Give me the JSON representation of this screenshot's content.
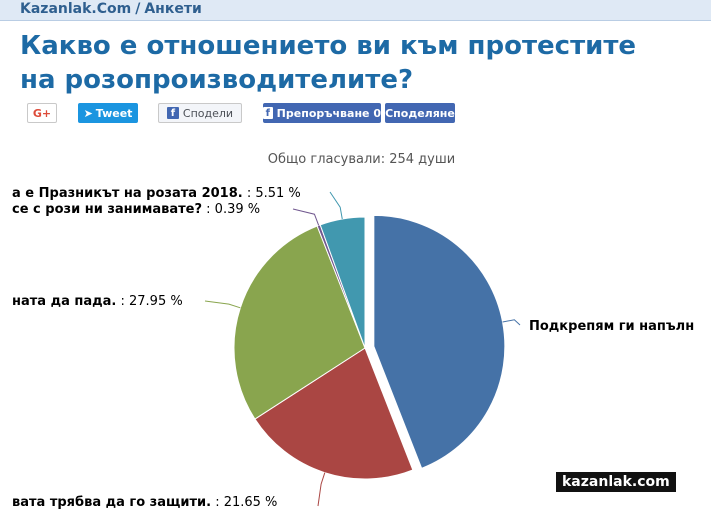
{
  "header": {
    "site": "Kazanlak.Com",
    "separator": "/",
    "section": "Анкети"
  },
  "title": "Какво е отношението ви към протестите на розопроизводителите?",
  "share": {
    "gplus": "G+",
    "tweet": "Tweet",
    "share": "Сподели",
    "like": "Препоръчване 0",
    "fb_share": "Споделяне"
  },
  "chart_data": {
    "type": "pie",
    "subtitle": "Общо гласували: 254 души",
    "slices": [
      {
        "label": "Подкрепям ги напълн",
        "value": 43.7,
        "percent_label": "",
        "color": "#4572a7",
        "exploded": true
      },
      {
        "label": "вата трябва да го защити.",
        "value": 21.65,
        "percent_label": "21.65 %",
        "color": "#aa4643",
        "exploded": false
      },
      {
        "label": "ната да пада.",
        "value": 27.95,
        "percent_label": "27.95 %",
        "color": "#89a54e",
        "exploded": false
      },
      {
        "label": "се с рози ни занимавате?",
        "value": 0.39,
        "percent_label": "0.39 %",
        "color": "#71588f",
        "exploded": false
      },
      {
        "label": "а е Празникът на розата 2018.",
        "value": 5.51,
        "percent_label": "5.51 %",
        "color": "#4198af",
        "exploded": false
      }
    ]
  },
  "watermark": "kazanlak.com"
}
